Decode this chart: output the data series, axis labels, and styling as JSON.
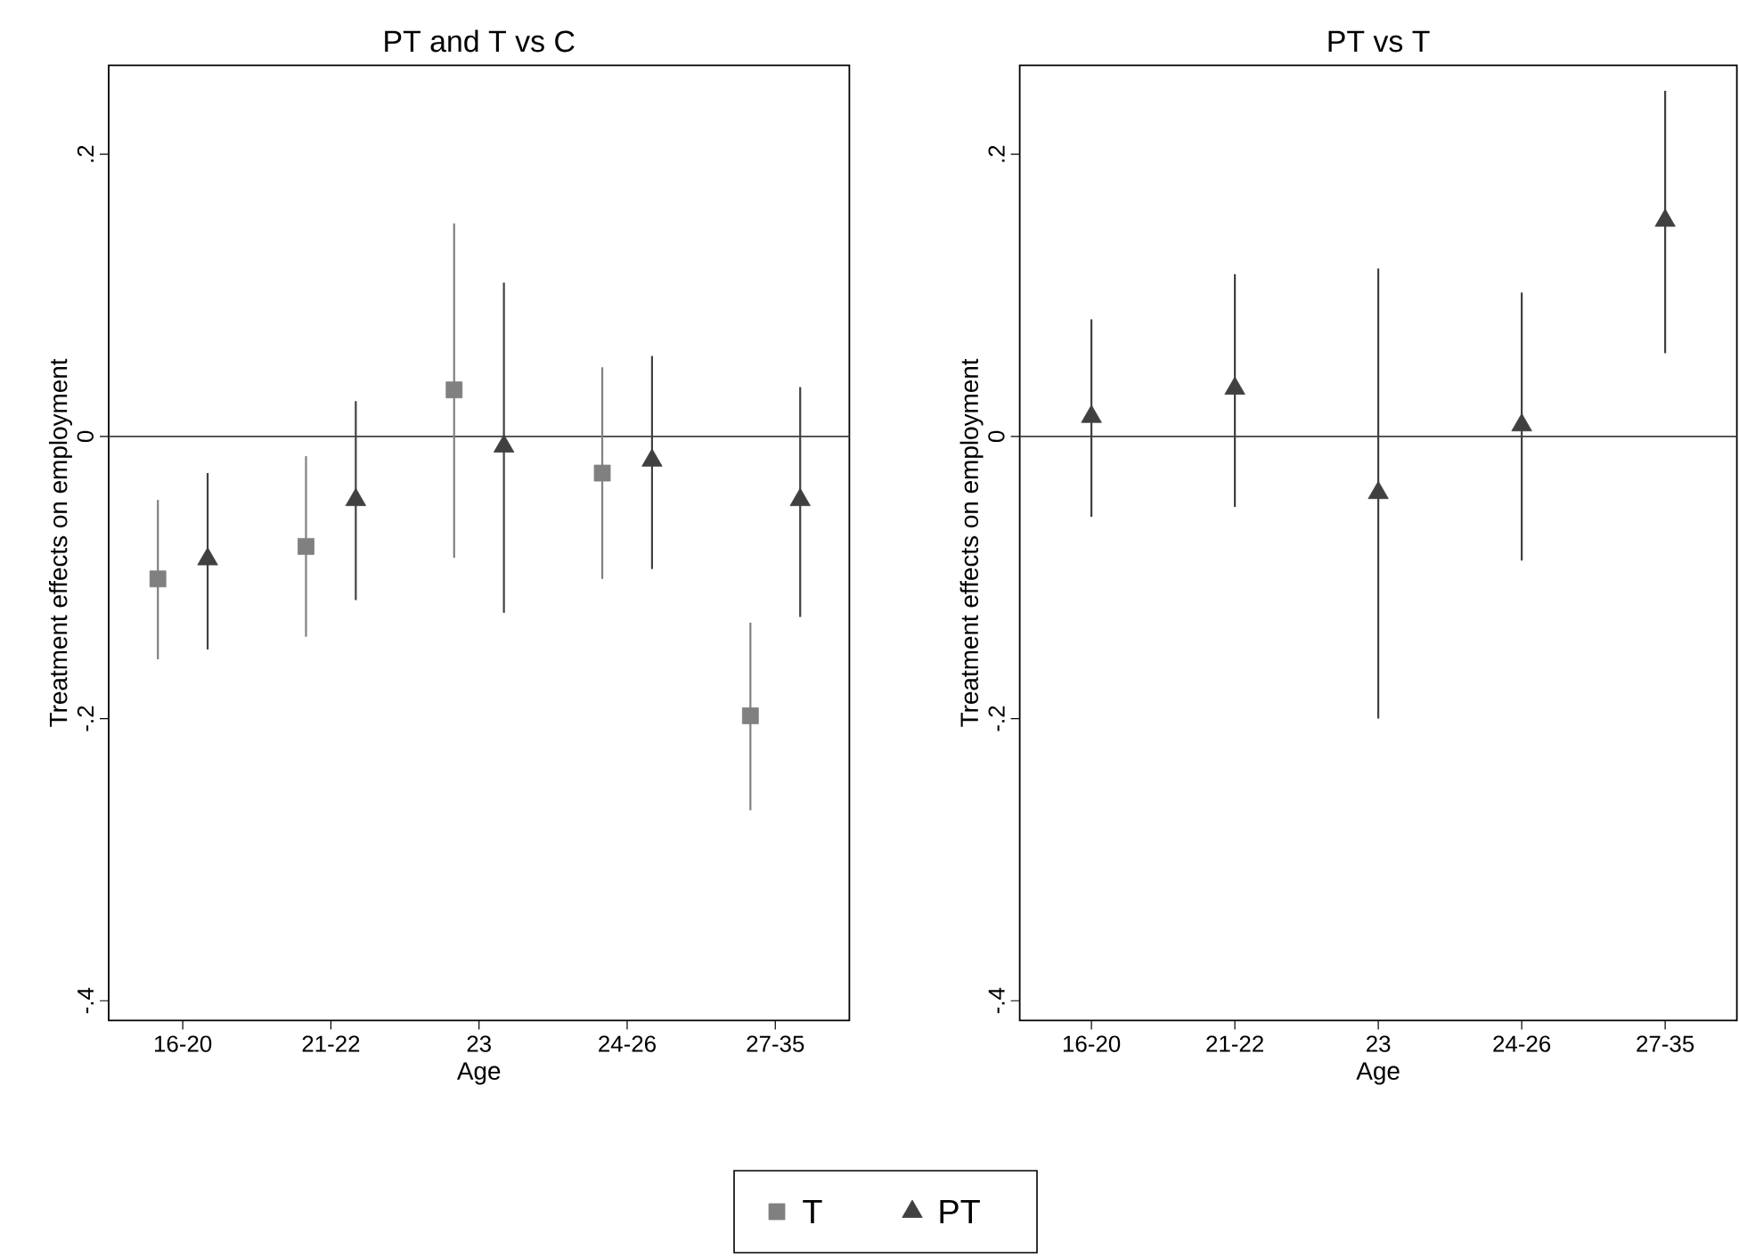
{
  "chart_data": [
    {
      "type": "scatter",
      "title": "PT and T vs C",
      "xlabel": "Age",
      "ylabel": "Treatment effects on employment",
      "categories": [
        "16-20",
        "21-22",
        "23",
        "24-26",
        "27-35"
      ],
      "series": [
        {
          "name": "T",
          "color": "#808080",
          "marker": "square",
          "values": [
            -0.101,
            -0.078,
            0.033,
            -0.026,
            -0.198
          ],
          "errors": [
            [
              -0.158,
              -0.045
            ],
            [
              -0.142,
              -0.014
            ],
            [
              -0.086,
              0.151
            ],
            [
              -0.101,
              0.049
            ],
            [
              -0.265,
              -0.132
            ]
          ]
        },
        {
          "name": "PT",
          "color": "#404040",
          "marker": "triangle",
          "values": [
            -0.087,
            -0.045,
            -0.007,
            -0.017,
            -0.045
          ],
          "errors": [
            [
              -0.151,
              -0.026
            ],
            [
              -0.116,
              0.025
            ],
            [
              -0.125,
              0.109
            ],
            [
              -0.094,
              0.057
            ],
            [
              -0.128,
              0.035
            ]
          ]
        }
      ],
      "ylim": [
        -0.414,
        0.263
      ],
      "yticks": [
        {
          "value": -0.4,
          "label": "-.4"
        },
        {
          "value": -0.2,
          "label": "-.2"
        },
        0,
        {
          "value": 0.2,
          "label": ".2"
        }
      ],
      "ref_lines": [
        {
          "axis": "y",
          "value": 0,
          "color": "#404040"
        }
      ],
      "legend": "bottom"
    },
    {
      "type": "scatter",
      "title": "PT vs T",
      "xlabel": "Age",
      "ylabel": "Treatment effects on employment",
      "categories": [
        "16-20",
        "21-22",
        "23",
        "24-26",
        "27-35"
      ],
      "series": [
        {
          "color": "#404040",
          "marker": "triangle",
          "values": [
            0.014,
            0.034,
            -0.04,
            0.008,
            0.153
          ],
          "errors": [
            [
              -0.057,
              0.083
            ],
            [
              -0.05,
              0.115
            ],
            [
              -0.2,
              0.119
            ],
            [
              -0.088,
              0.102
            ],
            [
              0.059,
              0.245
            ]
          ]
        }
      ],
      "ylim": [
        -0.414,
        0.263
      ],
      "yticks": [
        {
          "value": -0.4,
          "label": "-.4"
        },
        {
          "value": -0.2,
          "label": "-.2"
        },
        0,
        {
          "value": 0.2,
          "label": ".2"
        }
      ],
      "ref_lines": [
        {
          "axis": "y",
          "value": 0,
          "color": "#404040"
        }
      ]
    }
  ]
}
